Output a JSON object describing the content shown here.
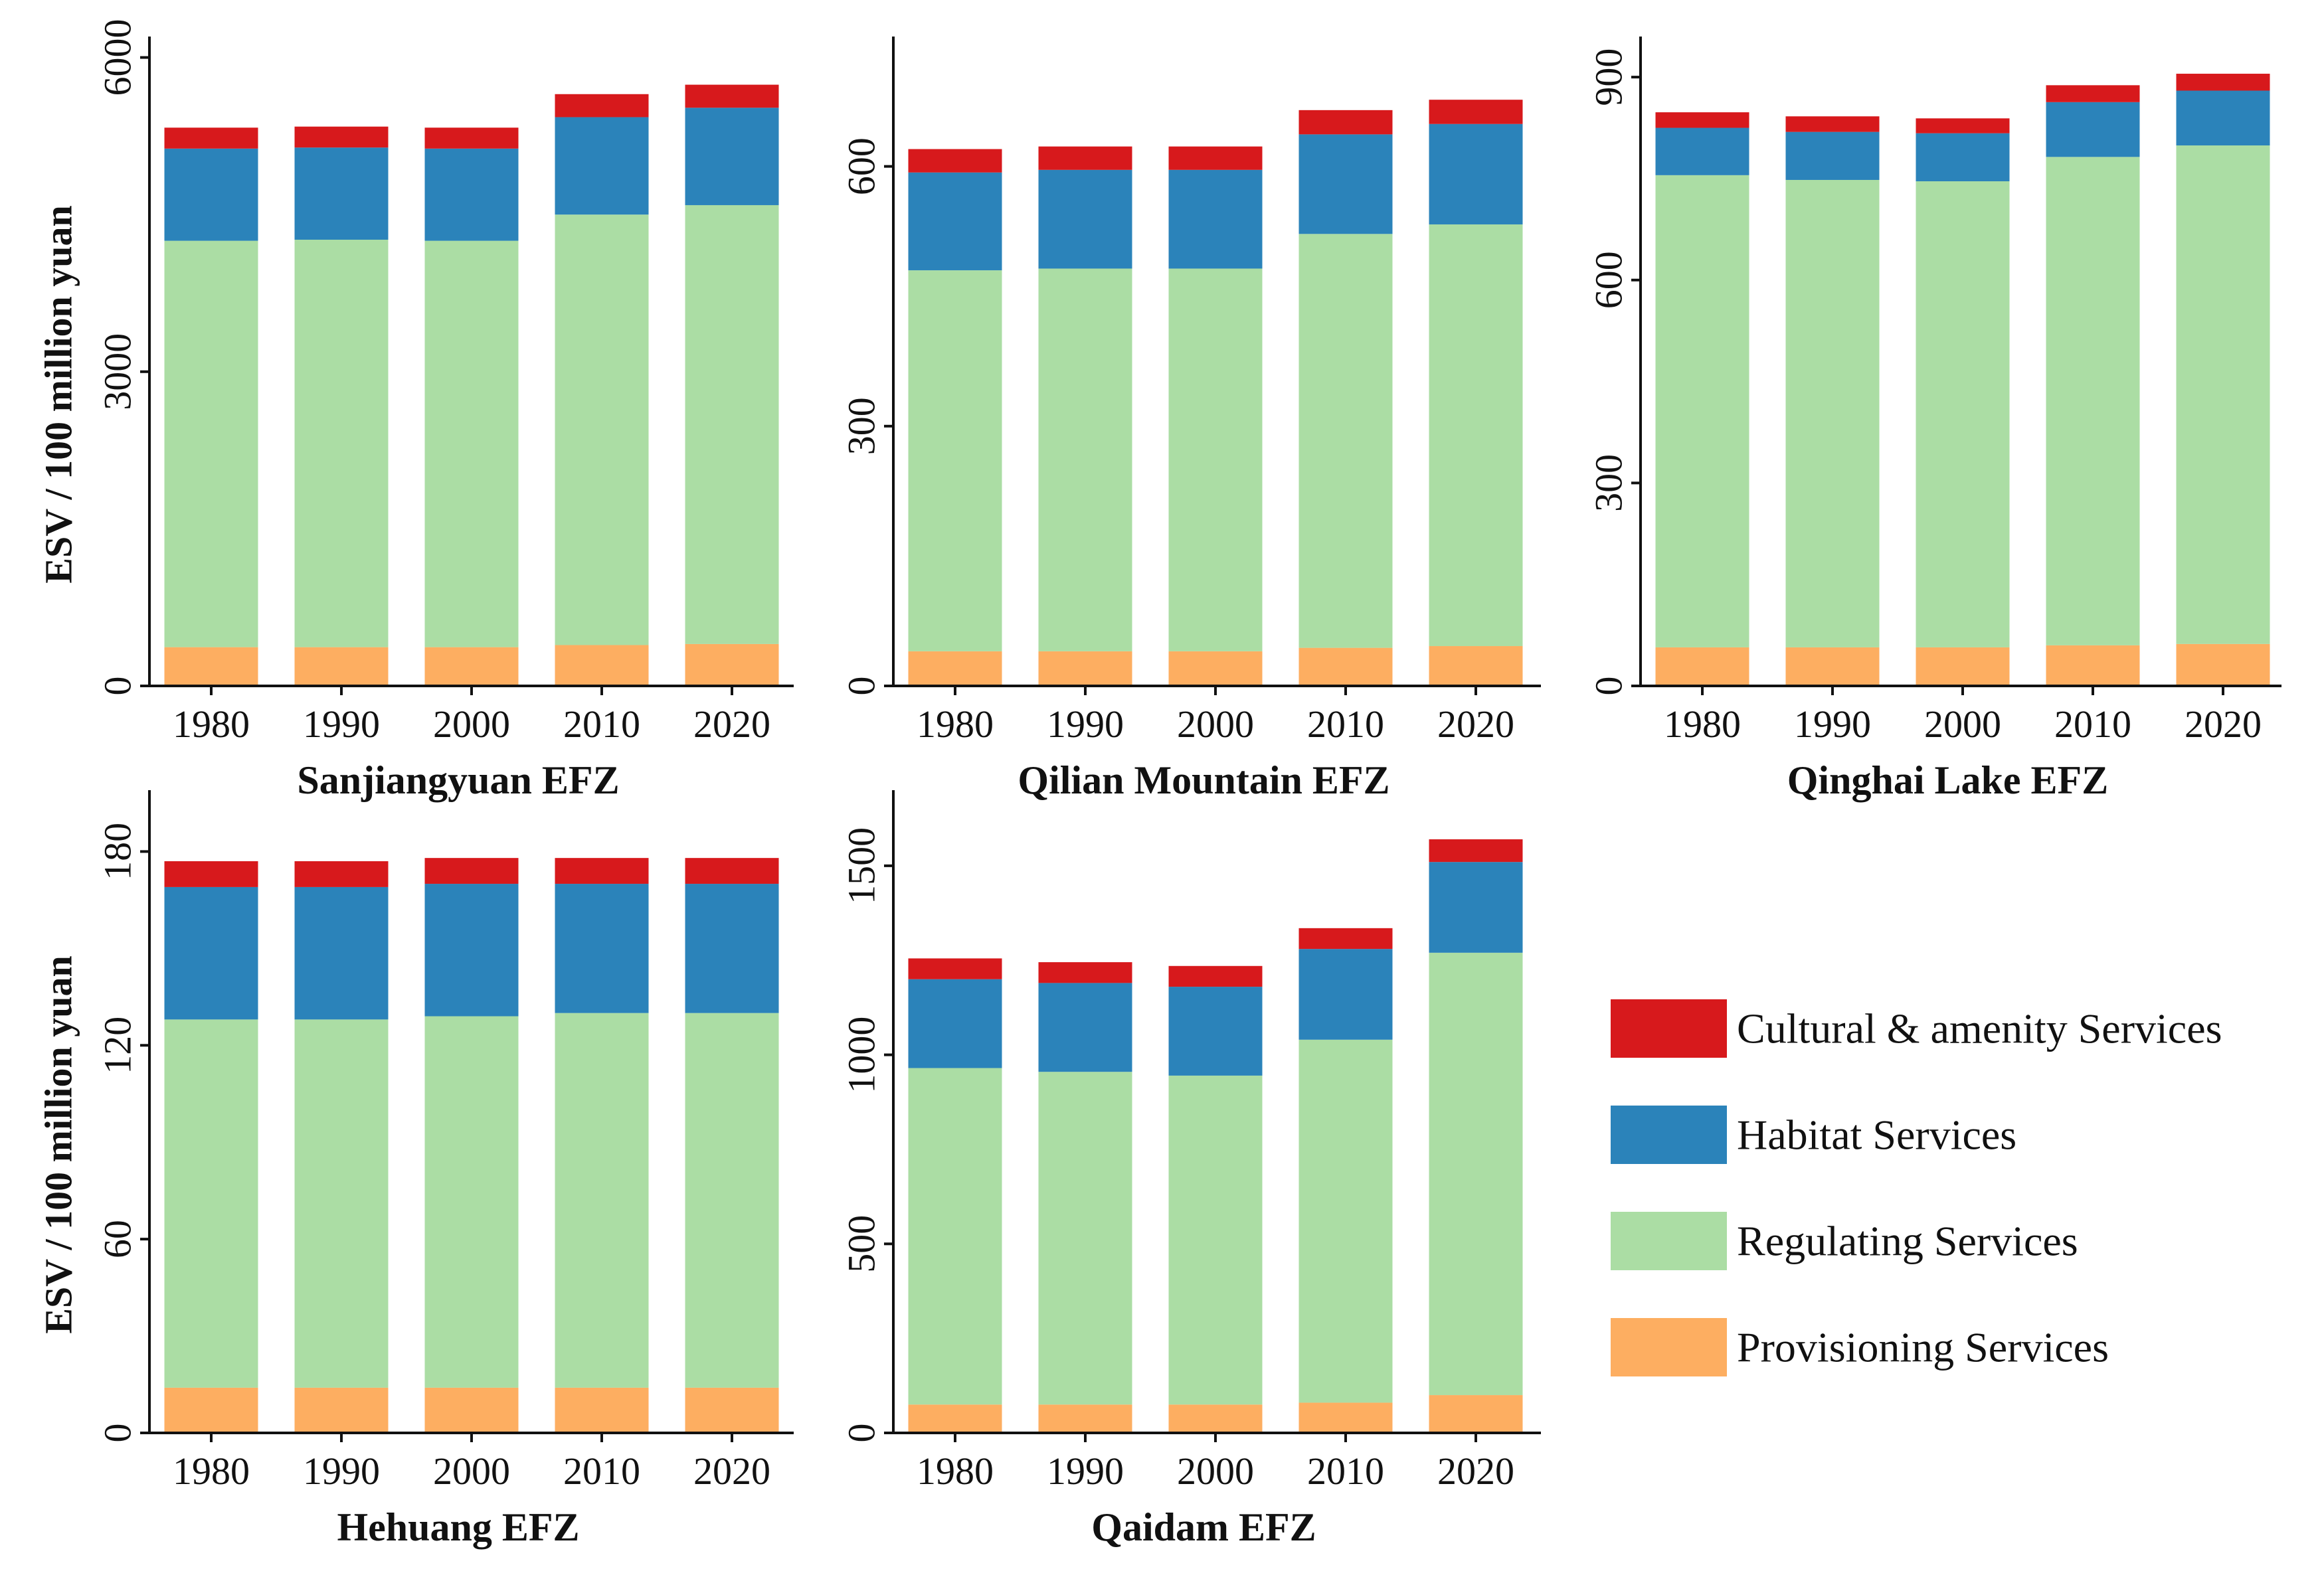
{
  "legend": {
    "items": [
      {
        "key": "cultural",
        "label": "Cultural & amenity Services",
        "color": "#d7191c"
      },
      {
        "key": "habitat",
        "label": "Habitat Services",
        "color": "#2b83ba"
      },
      {
        "key": "regulating",
        "label": "Regulating Services",
        "color": "#abdda4"
      },
      {
        "key": "provisioning",
        "label": "Provisioning Services",
        "color": "#fdae61"
      }
    ]
  },
  "chart_data": [
    {
      "type": "bar",
      "stacked": true,
      "title": "Sanjiangyuan EFZ",
      "ylabel": "ESV / 100 million yuan",
      "categories": [
        "1980",
        "1990",
        "2000",
        "2010",
        "2020"
      ],
      "ylim": [
        0,
        6200
      ],
      "yticks": [
        0,
        3000,
        6000
      ],
      "series": [
        {
          "name": "Provisioning Services",
          "values": [
            370,
            370,
            370,
            390,
            400
          ]
        },
        {
          "name": "Regulating Services",
          "values": [
            3880,
            3890,
            3880,
            4110,
            4190
          ]
        },
        {
          "name": "Habitat Services",
          "values": [
            880,
            880,
            880,
            930,
            930
          ]
        },
        {
          "name": "Cultural & amenity Services",
          "values": [
            200,
            200,
            200,
            220,
            220
          ]
        }
      ]
    },
    {
      "type": "bar",
      "stacked": true,
      "title": "Qilian Mountain EFZ",
      "ylabel": "",
      "categories": [
        "1980",
        "1990",
        "2000",
        "2010",
        "2020"
      ],
      "ylim": [
        0,
        750
      ],
      "yticks": [
        0,
        300,
        600
      ],
      "series": [
        {
          "name": "Provisioning Services",
          "values": [
            40,
            40,
            40,
            44,
            46
          ]
        },
        {
          "name": "Regulating Services",
          "values": [
            440,
            442,
            442,
            478,
            487
          ]
        },
        {
          "name": "Habitat Services",
          "values": [
            113,
            114,
            114,
            115,
            116
          ]
        },
        {
          "name": "Cultural & amenity Services",
          "values": [
            27,
            27,
            27,
            28,
            28
          ]
        }
      ]
    },
    {
      "type": "bar",
      "stacked": true,
      "title": "Qinghai Lake EFZ",
      "ylabel": "",
      "categories": [
        "1980",
        "1990",
        "2000",
        "2010",
        "2020"
      ],
      "ylim": [
        0,
        960
      ],
      "yticks": [
        0,
        300,
        600,
        900
      ],
      "series": [
        {
          "name": "Provisioning Services",
          "values": [
            57,
            57,
            57,
            60,
            62
          ]
        },
        {
          "name": "Regulating Services",
          "values": [
            698,
            691,
            689,
            722,
            737
          ]
        },
        {
          "name": "Habitat Services",
          "values": [
            70,
            71,
            71,
            81,
            81
          ]
        },
        {
          "name": "Cultural & amenity Services",
          "values": [
            23,
            23,
            22,
            25,
            25
          ]
        }
      ]
    },
    {
      "type": "bar",
      "stacked": true,
      "title": "Hehuang EFZ",
      "ylabel": "ESV / 100 million yuan",
      "categories": [
        "1980",
        "1990",
        "2000",
        "2010",
        "2020"
      ],
      "ylim": [
        0,
        199
      ],
      "yticks": [
        0,
        60,
        120,
        180
      ],
      "series": [
        {
          "name": "Provisioning Services",
          "values": [
            14,
            14,
            14,
            14,
            14
          ]
        },
        {
          "name": "Regulating Services",
          "values": [
            114,
            114,
            115,
            116,
            116
          ]
        },
        {
          "name": "Habitat Services",
          "values": [
            41,
            41,
            41,
            40,
            40
          ]
        },
        {
          "name": "Cultural & amenity Services",
          "values": [
            8,
            8,
            8,
            8,
            8
          ]
        }
      ]
    },
    {
      "type": "bar",
      "stacked": true,
      "title": "Qaidam EFZ",
      "ylabel": "",
      "categories": [
        "1980",
        "1990",
        "2000",
        "2010",
        "2020"
      ],
      "ylim": [
        0,
        1700
      ],
      "yticks": [
        0,
        500,
        1000,
        1500
      ],
      "series": [
        {
          "name": "Provisioning Services",
          "values": [
            75,
            75,
            75,
            80,
            100
          ]
        },
        {
          "name": "Regulating Services",
          "values": [
            890,
            880,
            870,
            960,
            1170
          ]
        },
        {
          "name": "Habitat Services",
          "values": [
            235,
            235,
            235,
            240,
            240
          ]
        },
        {
          "name": "Cultural & amenity Services",
          "values": [
            55,
            55,
            55,
            55,
            60
          ]
        }
      ]
    }
  ]
}
